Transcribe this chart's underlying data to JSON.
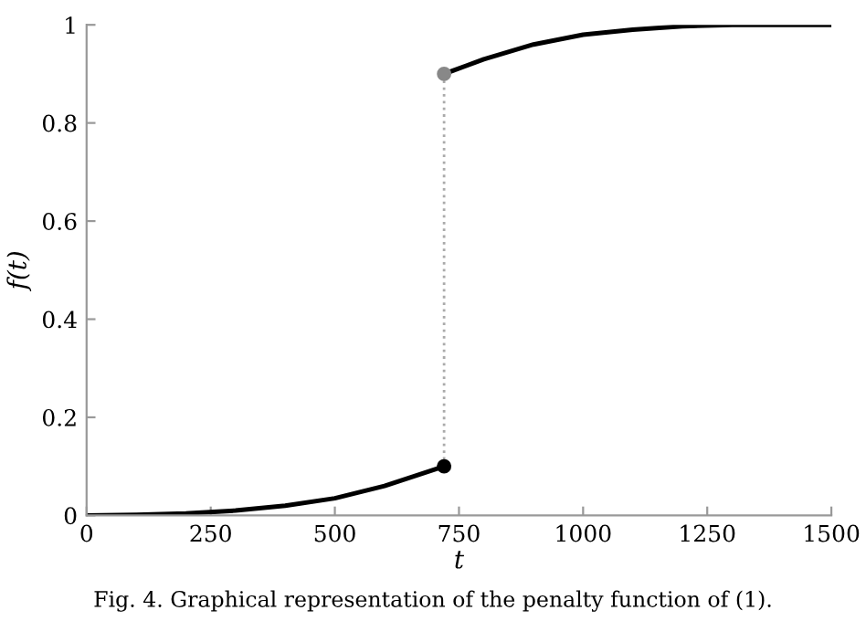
{
  "chart_data": {
    "type": "line",
    "xlabel": "t",
    "ylabel": "f(t)",
    "xlim": [
      0,
      1500
    ],
    "xticks": [
      0,
      250,
      500,
      750,
      1000,
      1250,
      1500
    ],
    "ylim": [
      0,
      1
    ],
    "yticks": [
      0,
      0.2,
      0.4,
      0.6,
      0.8,
      1
    ],
    "grid": false,
    "legend": false,
    "series": [
      {
        "color": "#000000",
        "x": [
          0,
          100,
          200,
          300,
          400,
          500,
          600,
          720
        ],
        "values": [
          0,
          0.001,
          0.004,
          0.01,
          0.02,
          0.035,
          0.06,
          0.1
        ]
      },
      {
        "color": "#000000",
        "x": [
          720,
          800,
          900,
          1000,
          1100,
          1200,
          1300,
          1500
        ],
        "values": [
          0.9,
          0.93,
          0.96,
          0.98,
          0.99,
          0.997,
          1,
          1
        ]
      },
      {
        "line_style": "dotted",
        "color": "#aaaaaa",
        "x": [
          720,
          720
        ],
        "values": [
          0.1,
          0.9
        ]
      },
      {
        "type": "scatter",
        "marker": "circle",
        "color": "#000000",
        "x": [
          720
        ],
        "values": [
          0.1
        ]
      },
      {
        "type": "scatter",
        "marker": "circle",
        "color": "#888888",
        "x": [
          720
        ],
        "values": [
          0.9
        ]
      }
    ],
    "annotations": [
      "Fig. 4. Graphical representation of the penalty function of (1)."
    ]
  }
}
